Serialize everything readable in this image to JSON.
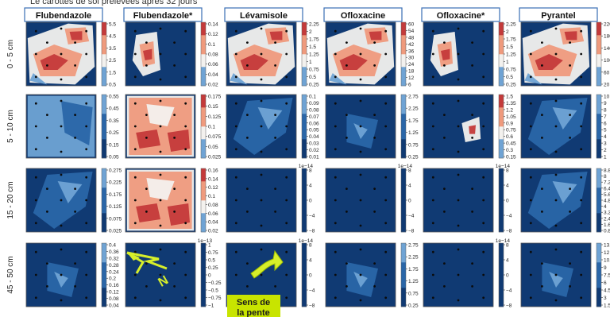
{
  "caption": "Le carottes de sol prélevées après 32 jours",
  "columns": [
    "Flubendazole",
    "Flubendazole*",
    "Lévamisole",
    "Ofloxacine",
    "Ofloxacine*",
    "Pyrantel"
  ],
  "rows": [
    "0 - 5 cm",
    "5 - 10 cm",
    "15 - 20 cm",
    "45 - 50 cm"
  ],
  "annotation": {
    "label_line1": "Sens de",
    "label_line2": "la pente",
    "north_letter": "N",
    "arrow_color": "#d7ef2a",
    "label_bg": "#c8e400"
  },
  "colors": {
    "background_field": "#103a73",
    "low_blue": "#2a66a8",
    "mid_blue": "#6fa3d4",
    "high_red": "#c43a3a",
    "mid_red": "#ef9a7d",
    "white": "#f3f1ee",
    "header_border": "#3a6fb5"
  },
  "chart_data": [
    {
      "row": "0 - 5 cm",
      "column": "Flubendazole",
      "type": "heatmap",
      "colorbar_ticks": [
        0.5,
        1.5,
        2.5,
        3.5,
        4.5,
        5.5
      ],
      "scale_offset": "",
      "pattern": "red"
    },
    {
      "row": "0 - 5 cm",
      "column": "Flubendazole*",
      "type": "heatmap",
      "colorbar_ticks": [
        0.02,
        0.04,
        0.06,
        0.08,
        0.1,
        0.12,
        0.14
      ],
      "scale_offset": "",
      "pattern": "red-small"
    },
    {
      "row": "0 - 5 cm",
      "column": "Lévamisole",
      "type": "heatmap",
      "colorbar_ticks": [
        0.25,
        0.5,
        0.75,
        1.0,
        1.25,
        1.5,
        1.75,
        2.0,
        2.25
      ],
      "scale_offset": "",
      "pattern": "red"
    },
    {
      "row": "0 - 5 cm",
      "column": "Ofloxacine",
      "type": "heatmap",
      "colorbar_ticks": [
        6,
        12,
        18,
        24,
        30,
        36,
        42,
        48,
        54,
        60
      ],
      "scale_offset": "",
      "pattern": "red"
    },
    {
      "row": "0 - 5 cm",
      "column": "Ofloxacine*",
      "type": "heatmap",
      "colorbar_ticks": [
        0.25,
        0.5,
        0.75,
        1.0,
        1.25,
        1.5,
        1.75,
        2.0,
        2.25
      ],
      "scale_offset": "",
      "pattern": "red-small"
    },
    {
      "row": "0 - 5 cm",
      "column": "Pyrantel",
      "type": "heatmap",
      "colorbar_ticks": [
        20,
        60,
        100,
        140,
        180,
        220
      ],
      "scale_offset": "",
      "pattern": "red"
    },
    {
      "row": "5 - 10 cm",
      "column": "Flubendazole",
      "type": "heatmap",
      "colorbar_ticks": [
        0.05,
        0.15,
        0.25,
        0.35,
        0.45,
        0.55
      ],
      "scale_offset": "",
      "pattern": "blue-full"
    },
    {
      "row": "5 - 10 cm",
      "column": "Flubendazole*",
      "type": "heatmap",
      "colorbar_ticks": [
        0.025,
        0.05,
        0.075,
        0.1,
        0.125,
        0.15,
        0.175
      ],
      "scale_offset": "",
      "pattern": "red-full"
    },
    {
      "row": "5 - 10 cm",
      "column": "Lévamisole",
      "type": "heatmap",
      "colorbar_ticks": [
        0.01,
        0.02,
        0.03,
        0.04,
        0.05,
        0.06,
        0.07,
        0.08,
        0.09,
        0.1
      ],
      "scale_offset": "",
      "pattern": "blue"
    },
    {
      "row": "5 - 10 cm",
      "column": "Ofloxacine",
      "type": "heatmap",
      "colorbar_ticks": [
        0.25,
        0.75,
        1.25,
        1.75,
        2.25,
        2.75
      ],
      "scale_offset": "",
      "pattern": "blue-small"
    },
    {
      "row": "5 - 10 cm",
      "column": "Ofloxacine*",
      "type": "heatmap",
      "colorbar_ticks": [
        0.15,
        0.3,
        0.45,
        0.6,
        0.75,
        0.9,
        1.05,
        1.2,
        1.35,
        1.5
      ],
      "scale_offset": "",
      "pattern": "red-tiny"
    },
    {
      "row": "5 - 10 cm",
      "column": "Pyrantel",
      "type": "heatmap",
      "colorbar_ticks": [
        1,
        2,
        3,
        4,
        5,
        6,
        7,
        8,
        9,
        10
      ],
      "scale_offset": "",
      "pattern": "blue"
    },
    {
      "row": "15 - 20 cm",
      "column": "Flubendazole",
      "type": "heatmap",
      "colorbar_ticks": [
        0.025,
        0.075,
        0.125,
        0.175,
        0.225,
        0.275
      ],
      "scale_offset": "",
      "pattern": "blue"
    },
    {
      "row": "15 - 20 cm",
      "column": "Flubendazole*",
      "type": "heatmap",
      "colorbar_ticks": [
        0.02,
        0.04,
        0.06,
        0.08,
        0.1,
        0.12,
        0.14,
        0.16
      ],
      "scale_offset": "",
      "pattern": "red-full"
    },
    {
      "row": "15 - 20 cm",
      "column": "Lévamisole",
      "type": "heatmap",
      "colorbar_ticks": [
        -8,
        -4,
        0,
        4,
        8
      ],
      "scale_offset": "1e−14",
      "pattern": "none"
    },
    {
      "row": "15 - 20 cm",
      "column": "Ofloxacine",
      "type": "heatmap",
      "colorbar_ticks": [
        -8,
        -4,
        0,
        4,
        8
      ],
      "scale_offset": "1e−14",
      "pattern": "none"
    },
    {
      "row": "15 - 20 cm",
      "column": "Ofloxacine*",
      "type": "heatmap",
      "colorbar_ticks": [
        -8,
        -4,
        0,
        4,
        8
      ],
      "scale_offset": "1e−14",
      "pattern": "none"
    },
    {
      "row": "15 - 20 cm",
      "column": "Pyrantel",
      "type": "heatmap",
      "colorbar_ticks": [
        0.8,
        1.6,
        2.4,
        3.2,
        4.0,
        4.8,
        5.6,
        6.4,
        7.2,
        8.0,
        8.8
      ],
      "scale_offset": "",
      "pattern": "blue"
    },
    {
      "row": "45 - 50 cm",
      "column": "Flubendazole",
      "type": "heatmap",
      "colorbar_ticks": [
        0.04,
        0.08,
        0.12,
        0.16,
        0.2,
        0.24,
        0.28,
        0.32,
        0.36,
        0.4
      ],
      "scale_offset": "",
      "pattern": "blue-small"
    },
    {
      "row": "45 - 50 cm",
      "column": "Flubendazole*",
      "type": "heatmap",
      "colorbar_ticks": [
        -1.0,
        -0.75,
        -0.5,
        -0.25,
        0.0,
        0.25,
        0.5,
        0.75,
        1.0
      ],
      "scale_offset": "1e−13",
      "pattern": "none"
    },
    {
      "row": "45 - 50 cm",
      "column": "Lévamisole",
      "type": "heatmap",
      "colorbar_ticks": [
        -8,
        -4,
        0,
        4,
        8
      ],
      "scale_offset": "1e−14",
      "pattern": "none"
    },
    {
      "row": "45 - 50 cm",
      "column": "Ofloxacine",
      "type": "heatmap",
      "colorbar_ticks": [
        0.25,
        0.75,
        1.25,
        1.75,
        2.25,
        2.75
      ],
      "scale_offset": "",
      "pattern": "blue-small"
    },
    {
      "row": "45 - 50 cm",
      "column": "Ofloxacine*",
      "type": "heatmap",
      "colorbar_ticks": [
        -8,
        -4,
        0,
        4,
        8
      ],
      "scale_offset": "1e−14",
      "pattern": "none"
    },
    {
      "row": "45 - 50 cm",
      "column": "Pyrantel",
      "type": "heatmap",
      "colorbar_ticks": [
        1.5,
        3.0,
        4.5,
        6.0,
        7.5,
        9.0,
        10.5,
        12.0,
        13.5
      ],
      "scale_offset": "",
      "pattern": "blue-small"
    }
  ]
}
